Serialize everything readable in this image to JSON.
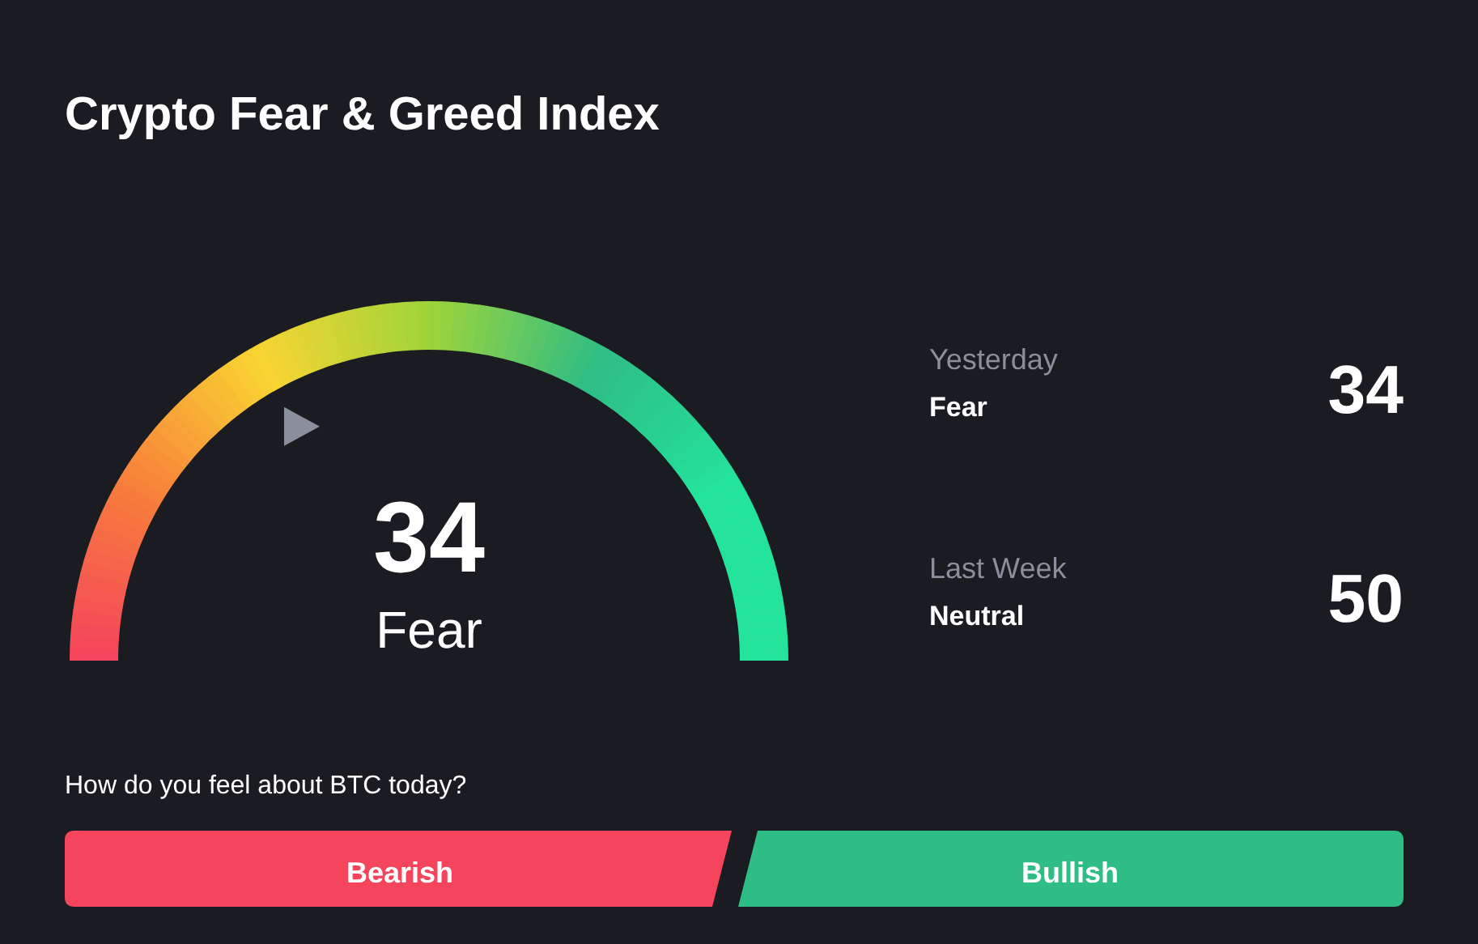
{
  "chart_data": {
    "type": "other",
    "title": "Crypto Fear & Greed Index",
    "categories": [
      null,
      "Yesterday",
      "Last Week"
    ],
    "values": [
      34,
      34,
      50
    ],
    "data_labels": true,
    "annotations": [
      "Fear",
      "Fear",
      "Neutral",
      "How do you feel about BTC today?",
      "Bearish",
      "Bullish"
    ]
  }
}
